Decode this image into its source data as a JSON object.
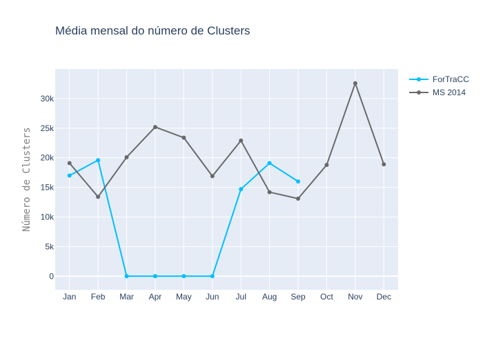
{
  "chart_data": {
    "type": "line",
    "title": "Média mensal do número de Clusters",
    "xlabel": "",
    "ylabel": "Número de Clusters",
    "categories": [
      "Jan",
      "Feb",
      "Mar",
      "Apr",
      "May",
      "Jun",
      "Jul",
      "Aug",
      "Sep",
      "Oct",
      "Nov",
      "Dec"
    ],
    "ylim": [
      -2300,
      35000
    ],
    "yticks": [
      0,
      5000,
      10000,
      15000,
      20000,
      25000,
      30000
    ],
    "ytick_labels": [
      "0",
      "5k",
      "10k",
      "15k",
      "20k",
      "25k",
      "30k"
    ],
    "grid": true,
    "legend_position": "top-right",
    "series": [
      {
        "name": "ForTraCC",
        "color": "#00bfff",
        "values": [
          17000,
          19600,
          0,
          0,
          0,
          0,
          14700,
          19100,
          16000,
          null,
          null,
          null
        ]
      },
      {
        "name": "MS 2014",
        "color": "#696969",
        "values": [
          19100,
          13400,
          20100,
          25200,
          23400,
          16900,
          22900,
          14200,
          13100,
          18800,
          32600,
          18900
        ]
      }
    ]
  },
  "colors": {
    "plot_background": "#e5ecf6",
    "grid": "#ffffff",
    "text": "#2a3f5f"
  }
}
